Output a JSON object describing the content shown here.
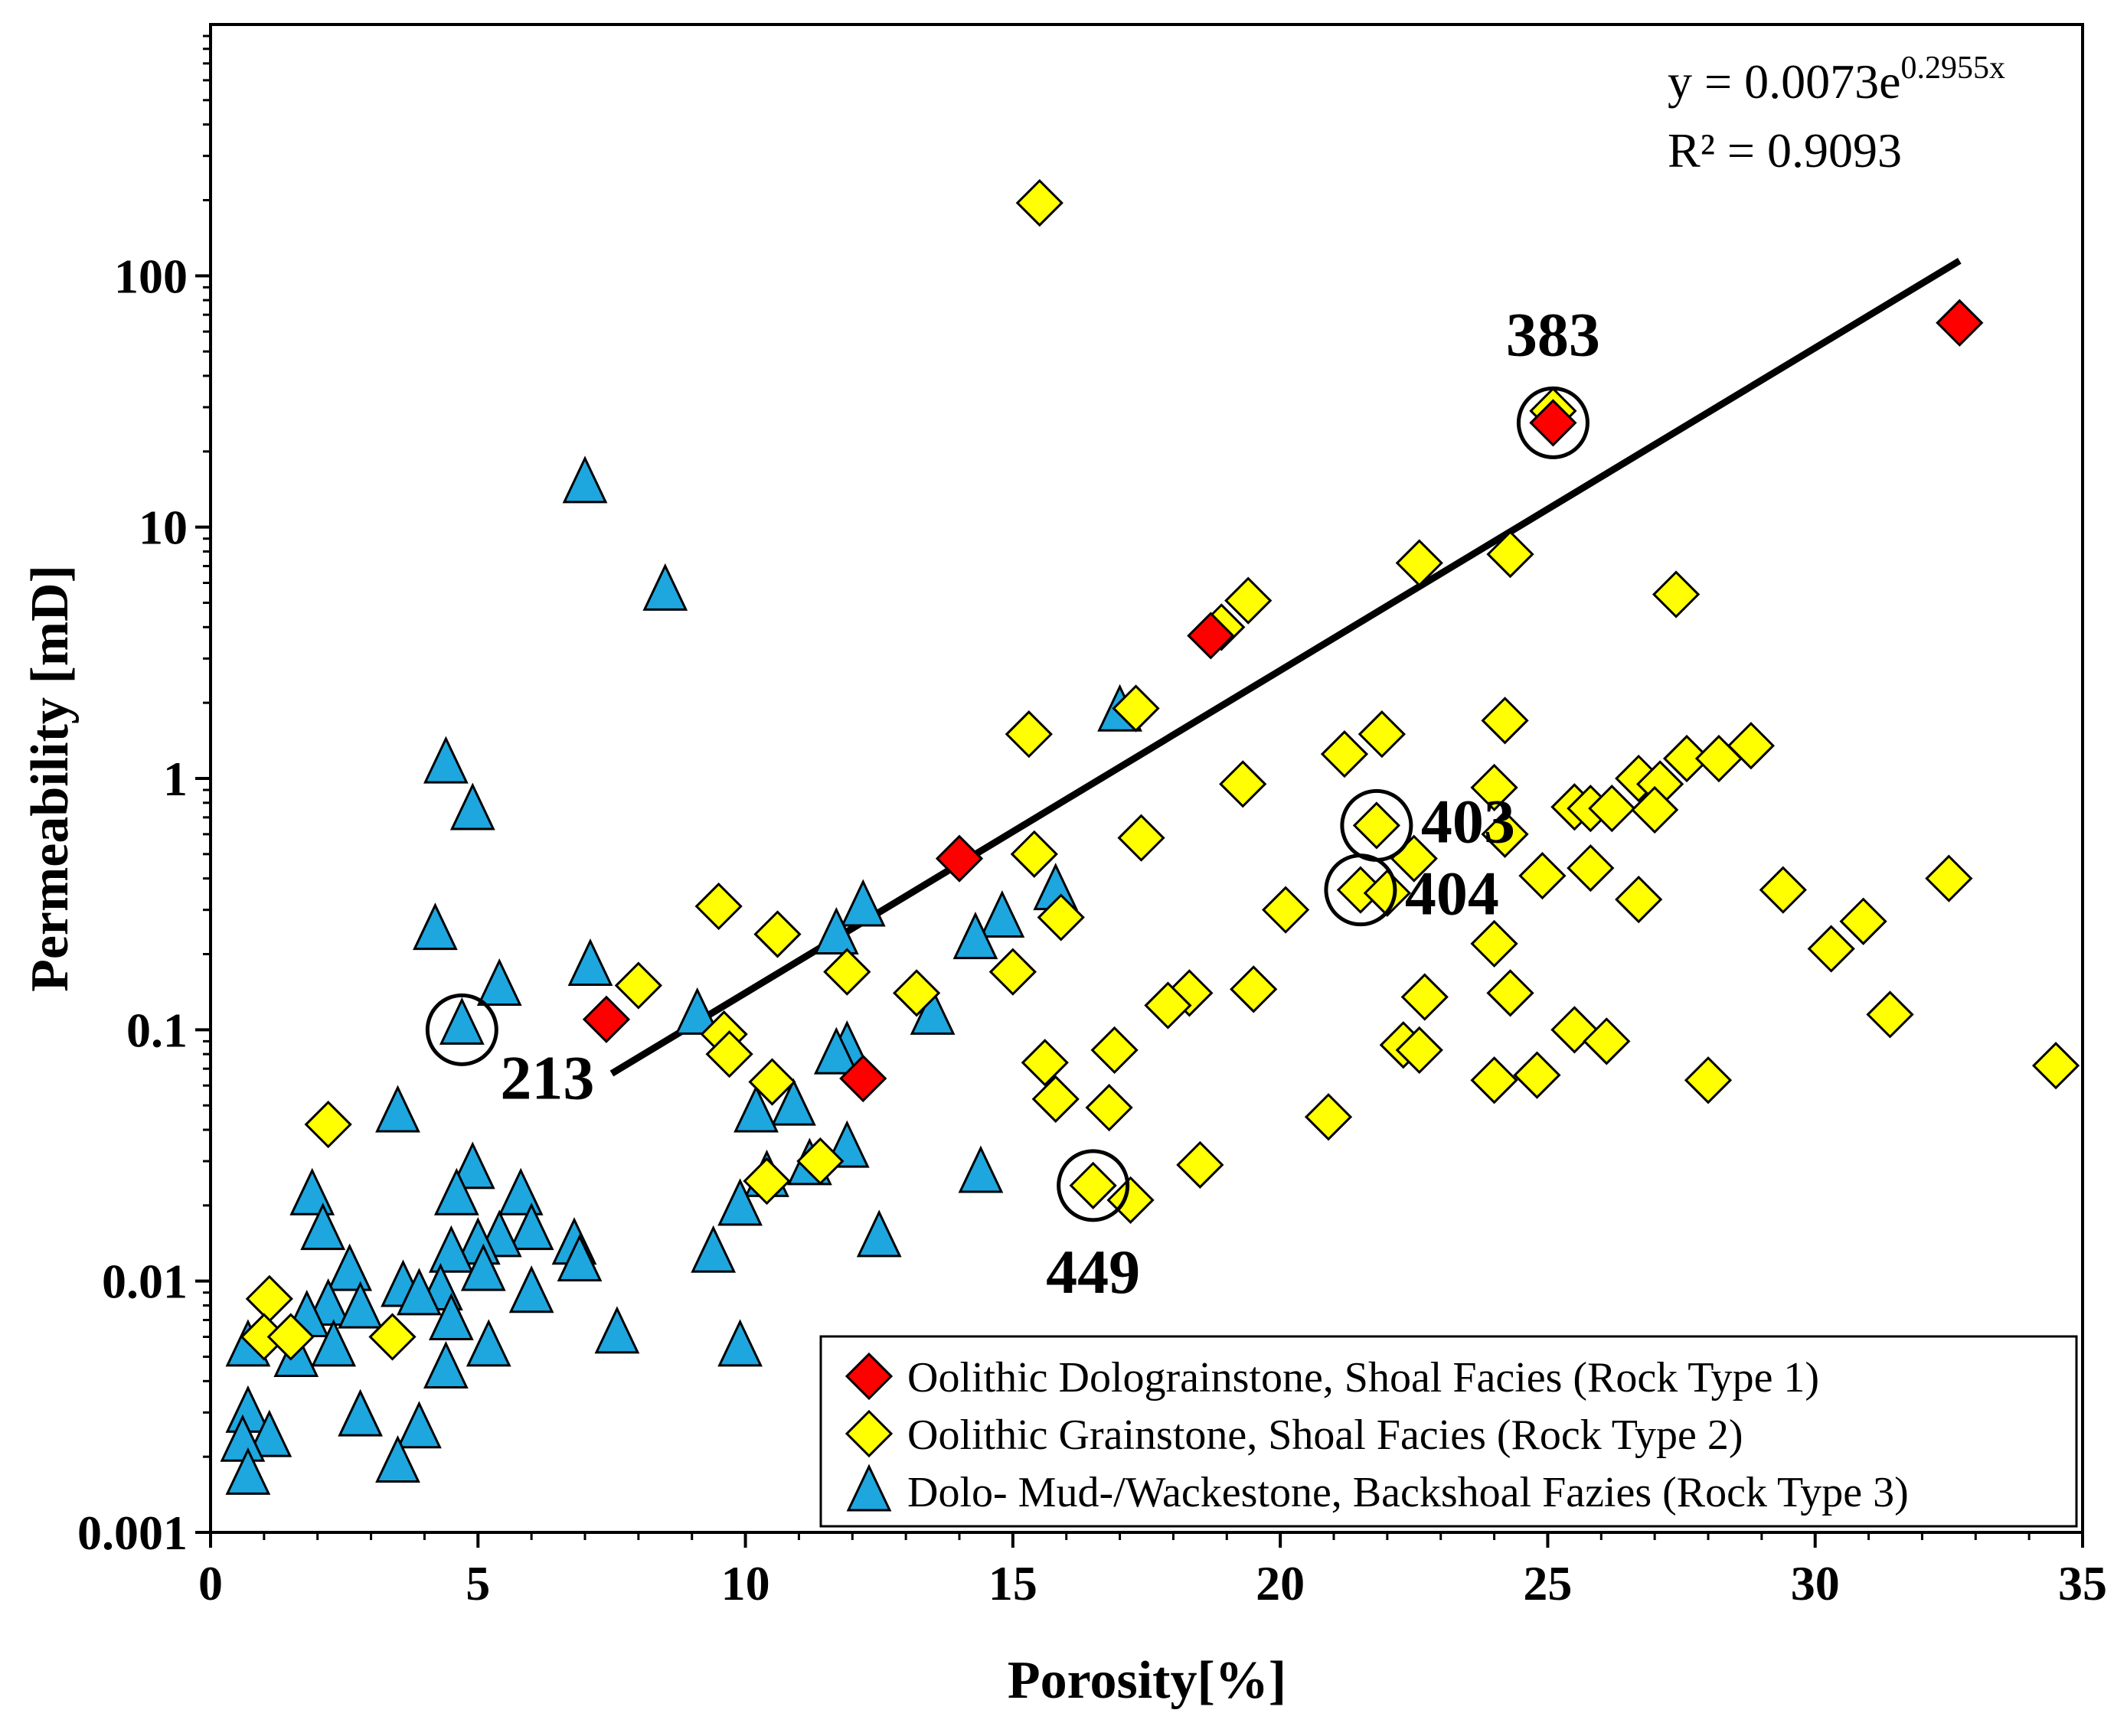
{
  "chart_data": {
    "type": "scatter",
    "xlabel": "Porosity[%]",
    "ylabel": "Permeability [mD]",
    "xlim": [
      0,
      35
    ],
    "ylim": [
      0.001,
      1000
    ],
    "yscale": "log",
    "x_ticks": [
      "0",
      "5",
      "10",
      "15",
      "20",
      "25",
      "30",
      "35"
    ],
    "y_ticks": [
      "0.001",
      "0.01",
      "0.1",
      "1",
      "10",
      "100"
    ],
    "grid": false,
    "legend_position": "bottom-right",
    "trendline": {
      "equation": "y = 0.0073e",
      "exponent": "0.2955x",
      "r_squared": "R² = 0.9093",
      "a": 0.0073,
      "b": 0.2955,
      "x_range": [
        7.5,
        32.7
      ]
    },
    "annotations": [
      {
        "label": "383",
        "x": 25.1,
        "y": 26
      },
      {
        "label": "403",
        "x": 21.8,
        "y": 0.65
      },
      {
        "label": "404",
        "x": 21.5,
        "y": 0.36
      },
      {
        "label": "213",
        "x": 4.7,
        "y": 0.1
      },
      {
        "label": "449",
        "x": 16.5,
        "y": 0.024
      }
    ],
    "series": [
      {
        "name": "Oolithic Dolograinstone, Shoal Facies (Rock Type 1)",
        "marker": "diamond",
        "color": "#ff0000",
        "points": [
          [
            32.7,
            65
          ],
          [
            25.1,
            26
          ],
          [
            18.7,
            3.7
          ],
          [
            14.0,
            0.48
          ],
          [
            7.4,
            0.11
          ],
          [
            12.2,
            0.064
          ]
        ]
      },
      {
        "name": "Oolithic Grainstone, Shoal Facies (Rock Type 2)",
        "marker": "diamond",
        "color": "#ffff00",
        "points": [
          [
            15.5,
            195
          ],
          [
            25.1,
            29
          ],
          [
            22.6,
            7.2
          ],
          [
            24.3,
            7.8
          ],
          [
            27.4,
            5.4
          ],
          [
            19.4,
            5.1
          ],
          [
            18.9,
            4.0
          ],
          [
            17.3,
            1.9
          ],
          [
            15.3,
            1.5
          ],
          [
            21.9,
            1.5
          ],
          [
            24.2,
            1.7
          ],
          [
            21.2,
            1.25
          ],
          [
            28.8,
            1.35
          ],
          [
            27.6,
            1.2
          ],
          [
            28.2,
            1.2
          ],
          [
            26.7,
            1.0
          ],
          [
            27.1,
            0.95
          ],
          [
            24.0,
            0.92
          ],
          [
            19.3,
            0.95
          ],
          [
            25.5,
            0.77
          ],
          [
            25.8,
            0.76
          ],
          [
            26.2,
            0.76
          ],
          [
            27.0,
            0.75
          ],
          [
            24.2,
            0.6
          ],
          [
            21.8,
            0.65
          ],
          [
            17.4,
            0.58
          ],
          [
            15.4,
            0.5
          ],
          [
            22.5,
            0.48
          ],
          [
            24.9,
            0.41
          ],
          [
            25.8,
            0.44
          ],
          [
            32.5,
            0.4
          ],
          [
            21.5,
            0.36
          ],
          [
            22.0,
            0.35
          ],
          [
            29.4,
            0.36
          ],
          [
            26.7,
            0.33
          ],
          [
            9.5,
            0.31
          ],
          [
            20.1,
            0.3
          ],
          [
            15.9,
            0.28
          ],
          [
            30.9,
            0.27
          ],
          [
            10.6,
            0.24
          ],
          [
            30.3,
            0.21
          ],
          [
            24.0,
            0.22
          ],
          [
            11.9,
            0.17
          ],
          [
            15.0,
            0.17
          ],
          [
            8.0,
            0.15
          ],
          [
            13.2,
            0.14
          ],
          [
            18.3,
            0.14
          ],
          [
            19.5,
            0.145
          ],
          [
            24.3,
            0.14
          ],
          [
            22.7,
            0.135
          ],
          [
            17.9,
            0.125
          ],
          [
            31.4,
            0.115
          ],
          [
            25.5,
            0.1
          ],
          [
            9.6,
            0.096
          ],
          [
            26.1,
            0.09
          ],
          [
            22.3,
            0.087
          ],
          [
            22.6,
            0.083
          ],
          [
            9.7,
            0.08
          ],
          [
            16.9,
            0.083
          ],
          [
            15.6,
            0.074
          ],
          [
            34.5,
            0.072
          ],
          [
            10.5,
            0.062
          ],
          [
            24.8,
            0.066
          ],
          [
            28.0,
            0.063
          ],
          [
            24.0,
            0.063
          ],
          [
            15.8,
            0.053
          ],
          [
            16.8,
            0.049
          ],
          [
            20.9,
            0.045
          ],
          [
            2.2,
            0.042
          ],
          [
            11.4,
            0.03
          ],
          [
            18.5,
            0.029
          ],
          [
            10.4,
            0.025
          ],
          [
            16.5,
            0.024
          ],
          [
            17.2,
            0.021
          ],
          [
            1.1,
            0.0085
          ],
          [
            1.0,
            0.006
          ],
          [
            1.5,
            0.006
          ],
          [
            3.4,
            0.006
          ]
        ]
      },
      {
        "name": "Dolo- Mud-/Wackestone, Backshoal Fazies (Rock Type 3)",
        "marker": "triangle",
        "color": "#1ea6df",
        "points": [
          [
            7.0,
            15
          ],
          [
            8.5,
            5.6
          ],
          [
            17.0,
            1.85
          ],
          [
            4.4,
            1.15
          ],
          [
            4.9,
            0.75
          ],
          [
            15.8,
            0.36
          ],
          [
            12.2,
            0.31
          ],
          [
            14.8,
            0.28
          ],
          [
            11.7,
            0.24
          ],
          [
            4.2,
            0.25
          ],
          [
            14.3,
            0.23
          ],
          [
            7.1,
            0.18
          ],
          [
            5.4,
            0.15
          ],
          [
            13.5,
            0.115
          ],
          [
            9.1,
            0.115
          ],
          [
            4.7,
            0.105
          ],
          [
            11.9,
            0.085
          ],
          [
            11.7,
            0.08
          ],
          [
            10.9,
            0.05
          ],
          [
            10.2,
            0.047
          ],
          [
            3.5,
            0.047
          ],
          [
            11.9,
            0.034
          ],
          [
            4.9,
            0.028
          ],
          [
            14.4,
            0.027
          ],
          [
            11.2,
            0.029
          ],
          [
            10.4,
            0.026
          ],
          [
            1.9,
            0.022
          ],
          [
            4.6,
            0.022
          ],
          [
            5.8,
            0.022
          ],
          [
            9.9,
            0.02
          ],
          [
            2.1,
            0.016
          ],
          [
            6.0,
            0.016
          ],
          [
            12.5,
            0.015
          ],
          [
            5.4,
            0.015
          ],
          [
            6.8,
            0.014
          ],
          [
            5.0,
            0.014
          ],
          [
            9.4,
            0.013
          ],
          [
            4.5,
            0.013
          ],
          [
            6.9,
            0.012
          ],
          [
            2.6,
            0.011
          ],
          [
            5.1,
            0.011
          ],
          [
            3.6,
            0.0095
          ],
          [
            4.3,
            0.0092
          ],
          [
            6.0,
            0.009
          ],
          [
            3.9,
            0.0088
          ],
          [
            2.2,
            0.008
          ],
          [
            2.8,
            0.0078
          ],
          [
            1.8,
            0.0072
          ],
          [
            4.5,
            0.007
          ],
          [
            7.6,
            0.0062
          ],
          [
            0.7,
            0.0055
          ],
          [
            2.3,
            0.0055
          ],
          [
            5.2,
            0.0055
          ],
          [
            9.9,
            0.0055
          ],
          [
            1.6,
            0.005
          ],
          [
            4.4,
            0.0045
          ],
          [
            0.7,
            0.003
          ],
          [
            2.8,
            0.0029
          ],
          [
            3.9,
            0.0026
          ],
          [
            1.1,
            0.0024
          ],
          [
            0.6,
            0.0023
          ],
          [
            3.5,
            0.0019
          ],
          [
            0.7,
            0.0017
          ]
        ]
      }
    ]
  }
}
